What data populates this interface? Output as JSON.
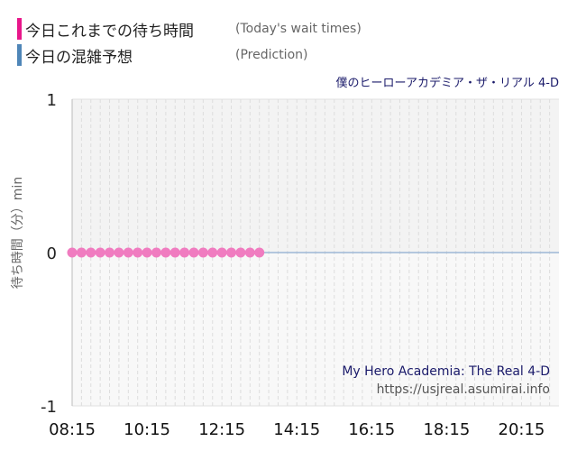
{
  "legend": [
    {
      "label": "今日これまでの待ち時間",
      "sub": "(Today's wait times)",
      "color": "#e8168a"
    },
    {
      "label": "今日の混雑予想",
      "sub": "(Prediction)",
      "color": "#4f86b8"
    }
  ],
  "credits": {
    "name": "My Hero Academia: The Real 4-D",
    "url": "https://usjreal.asumirai.info"
  },
  "chart_data": {
    "type": "scatter",
    "title": "僕のヒーローアカデミア・ザ・リアル 4-D",
    "xlabel": "",
    "ylabel": "待ち時間（分）min",
    "ylim": [
      -1,
      1
    ],
    "xlim": [
      "08:15",
      "21:15"
    ],
    "yticks": [
      "1",
      "0",
      "-1"
    ],
    "xticks": [
      "08:15",
      "10:15",
      "12:15",
      "14:15",
      "16:15",
      "18:15",
      "20:15"
    ],
    "grid": true,
    "series": [
      {
        "name": "今日これまでの待ち時間",
        "color": "#f07cc0",
        "points": [
          {
            "x": "08:15",
            "y": 0
          },
          {
            "x": "08:30",
            "y": 0
          },
          {
            "x": "08:45",
            "y": 0
          },
          {
            "x": "09:00",
            "y": 0
          },
          {
            "x": "09:15",
            "y": 0
          },
          {
            "x": "09:30",
            "y": 0
          },
          {
            "x": "09:45",
            "y": 0
          },
          {
            "x": "10:00",
            "y": 0
          },
          {
            "x": "10:15",
            "y": 0
          },
          {
            "x": "10:30",
            "y": 0
          },
          {
            "x": "10:45",
            "y": 0
          },
          {
            "x": "11:00",
            "y": 0
          },
          {
            "x": "11:15",
            "y": 0
          },
          {
            "x": "11:30",
            "y": 0
          },
          {
            "x": "11:45",
            "y": 0
          },
          {
            "x": "12:00",
            "y": 0
          },
          {
            "x": "12:15",
            "y": 0
          },
          {
            "x": "12:30",
            "y": 0
          },
          {
            "x": "12:45",
            "y": 0
          },
          {
            "x": "13:00",
            "y": 0
          },
          {
            "x": "13:15",
            "y": 0
          }
        ]
      },
      {
        "name": "今日の混雑予想",
        "color": "#9db8d6",
        "points": [
          {
            "x": "08:15",
            "y": 0
          },
          {
            "x": "21:15",
            "y": 0
          }
        ]
      }
    ]
  }
}
